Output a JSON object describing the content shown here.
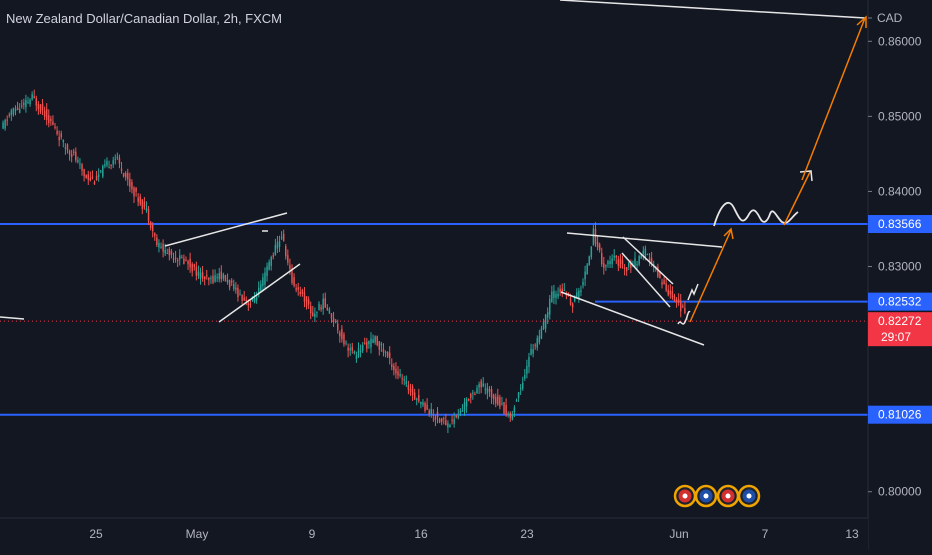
{
  "chart_data": {
    "type": "candlestick",
    "title": "New Zealand Dollar/Canadian Dollar, 2h, FXCM",
    "currency_label": "CAD",
    "y_ticks": [
      0.86,
      0.85,
      0.84,
      0.83,
      0.8
    ],
    "y_tick_labels": [
      "0.86000",
      "0.85000",
      "0.84000",
      "0.83000",
      "0.80000"
    ],
    "x_tick_labels": [
      "25",
      "May",
      "9",
      "16",
      "23",
      "Jun",
      "7",
      "13"
    ],
    "ylim": [
      0.7965,
      0.8655
    ],
    "grid": false,
    "horizontal_levels": [
      {
        "value": 0.83566,
        "label": "0.83566",
        "color": "#2962ff"
      },
      {
        "value": 0.82532,
        "label": "0.82532",
        "color": "#2962ff"
      },
      {
        "value": 0.81026,
        "label": "0.81026",
        "color": "#2962ff"
      }
    ],
    "current_price": {
      "value": 0.82272,
      "label": "0.82272",
      "countdown": "29:07",
      "color": "#f23645"
    },
    "up_color": "#26a69a",
    "down_color": "#ef5350",
    "price_path": [
      0.8482,
      0.8507,
      0.8512,
      0.8525,
      0.8508,
      0.8488,
      0.8463,
      0.8448,
      0.8422,
      0.8415,
      0.8432,
      0.8446,
      0.842,
      0.8394,
      0.8375,
      0.833,
      0.8318,
      0.8312,
      0.8305,
      0.829,
      0.828,
      0.829,
      0.8277,
      0.8262,
      0.825,
      0.8272,
      0.8312,
      0.8342,
      0.828,
      0.8262,
      0.8235,
      0.8252,
      0.823,
      0.82,
      0.8182,
      0.8195,
      0.8202,
      0.8185,
      0.816,
      0.8142,
      0.8125,
      0.811,
      0.8098,
      0.809,
      0.8102,
      0.8125,
      0.8143,
      0.8132,
      0.8118,
      0.8098,
      0.814,
      0.8188,
      0.8212,
      0.8262,
      0.8268,
      0.825,
      0.8278,
      0.8345,
      0.83,
      0.831,
      0.8298,
      0.8305,
      0.8318,
      0.8295,
      0.827,
      0.8255,
      0.8232
    ]
  }
}
